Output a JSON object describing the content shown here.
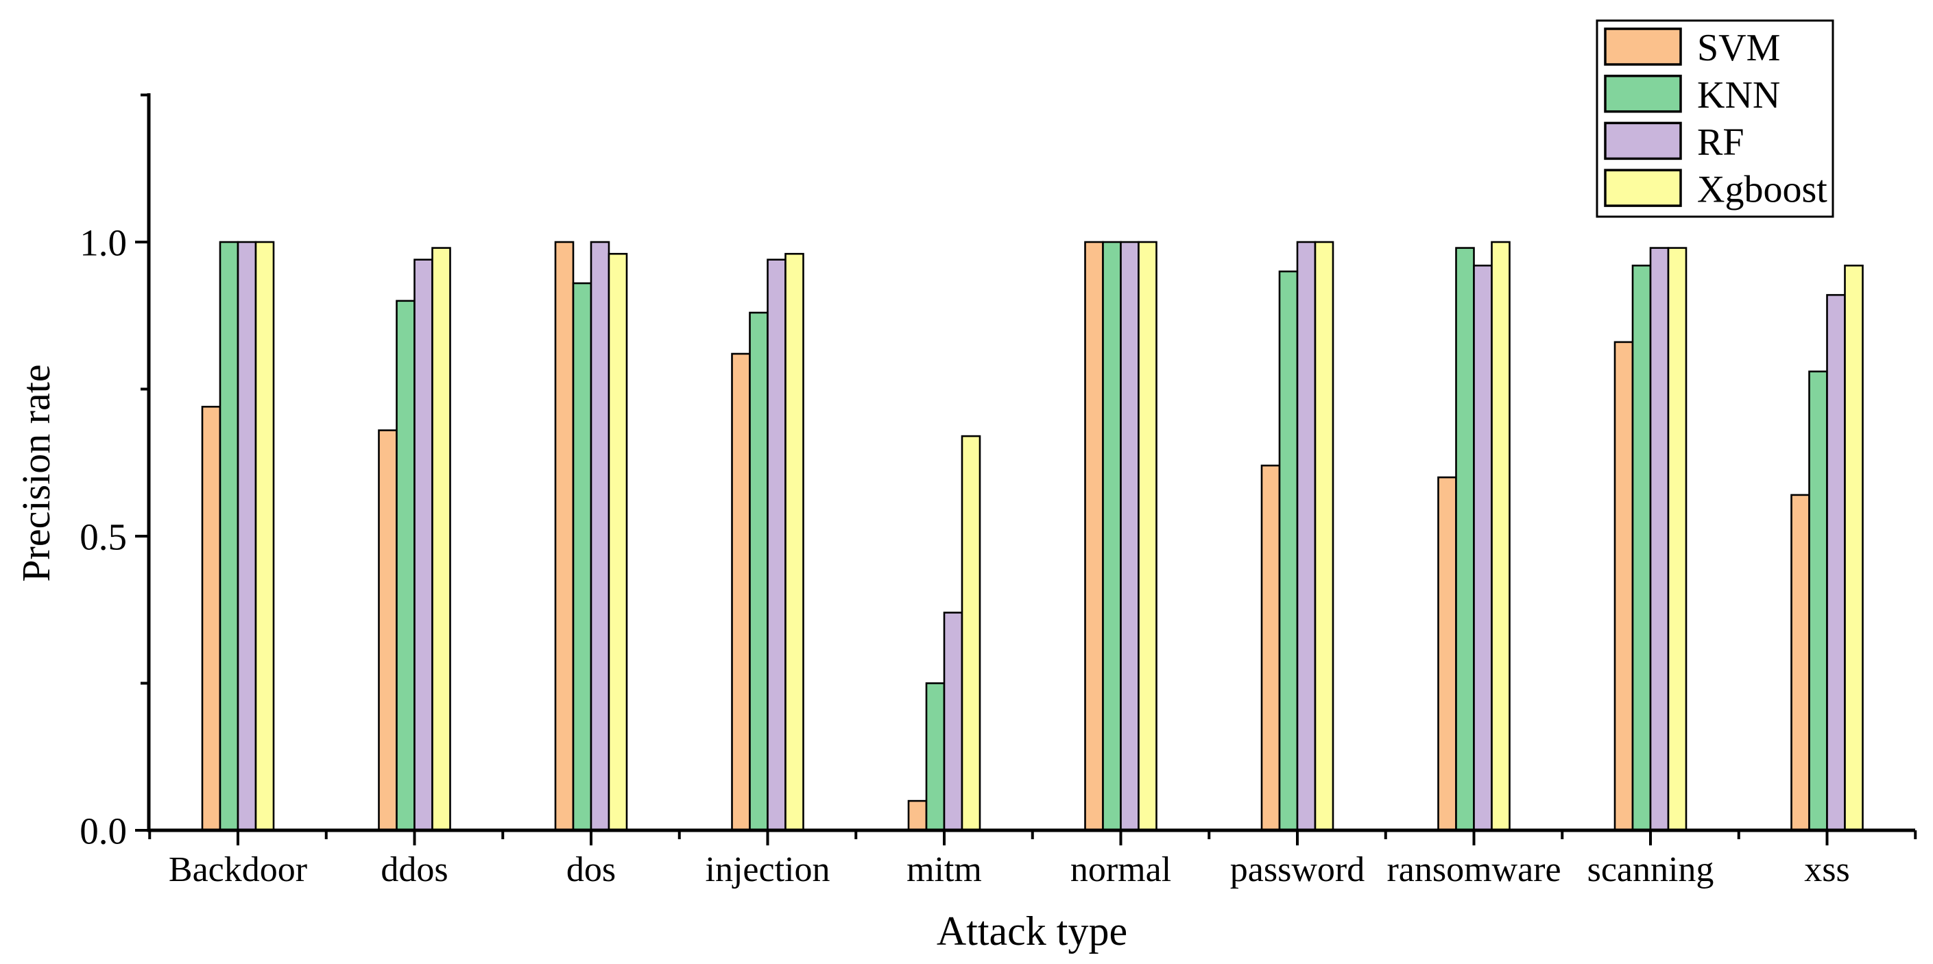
{
  "figure": {
    "background_color": "#ffffff",
    "axis_color": "#000000",
    "bar_border_color": "#000000",
    "y_axis": {
      "label": "Precision rate",
      "tick_labels": [
        "0.0",
        "0.5",
        "1.0"
      ],
      "major_ticks": [
        0.0,
        0.5,
        1.0
      ],
      "minor_ticks": [
        0.25,
        0.75,
        1.25
      ]
    },
    "x_axis": {
      "label": "Attack type"
    },
    "legend": {
      "position": "top-right",
      "entries": [
        {
          "label": "SVM",
          "color": "#FBC18C"
        },
        {
          "label": "KNN",
          "color": "#82D49C"
        },
        {
          "label": "RF",
          "color": "#C9B5DC"
        },
        {
          "label": "Xgboost",
          "color": "#FDFD9E"
        }
      ]
    }
  },
  "chart_data": {
    "type": "bar",
    "title": "",
    "xlabel": "Attack type",
    "ylabel": "Precision rate",
    "ylim": [
      0,
      1.25
    ],
    "grid": false,
    "legend_position": "top-right",
    "categories": [
      "Backdoor",
      "ddos",
      "dos",
      "injection",
      "mitm",
      "normal",
      "password",
      "ransomware",
      "scanning",
      "xss"
    ],
    "series": [
      {
        "name": "SVM",
        "color": "#FBC18C",
        "values": [
          0.72,
          0.68,
          1.0,
          0.81,
          0.05,
          1.0,
          0.62,
          0.6,
          0.83,
          0.57
        ]
      },
      {
        "name": "KNN",
        "color": "#82D49C",
        "values": [
          1.0,
          0.9,
          0.93,
          0.88,
          0.25,
          1.0,
          0.95,
          0.99,
          0.96,
          0.78
        ]
      },
      {
        "name": "RF",
        "color": "#C9B5DC",
        "values": [
          1.0,
          0.97,
          1.0,
          0.97,
          0.37,
          1.0,
          1.0,
          0.96,
          0.99,
          0.91
        ]
      },
      {
        "name": "Xgboost",
        "color": "#FDFD9E",
        "values": [
          1.0,
          0.99,
          0.98,
          0.98,
          0.67,
          1.0,
          1.0,
          1.0,
          0.99,
          0.96
        ]
      }
    ]
  }
}
